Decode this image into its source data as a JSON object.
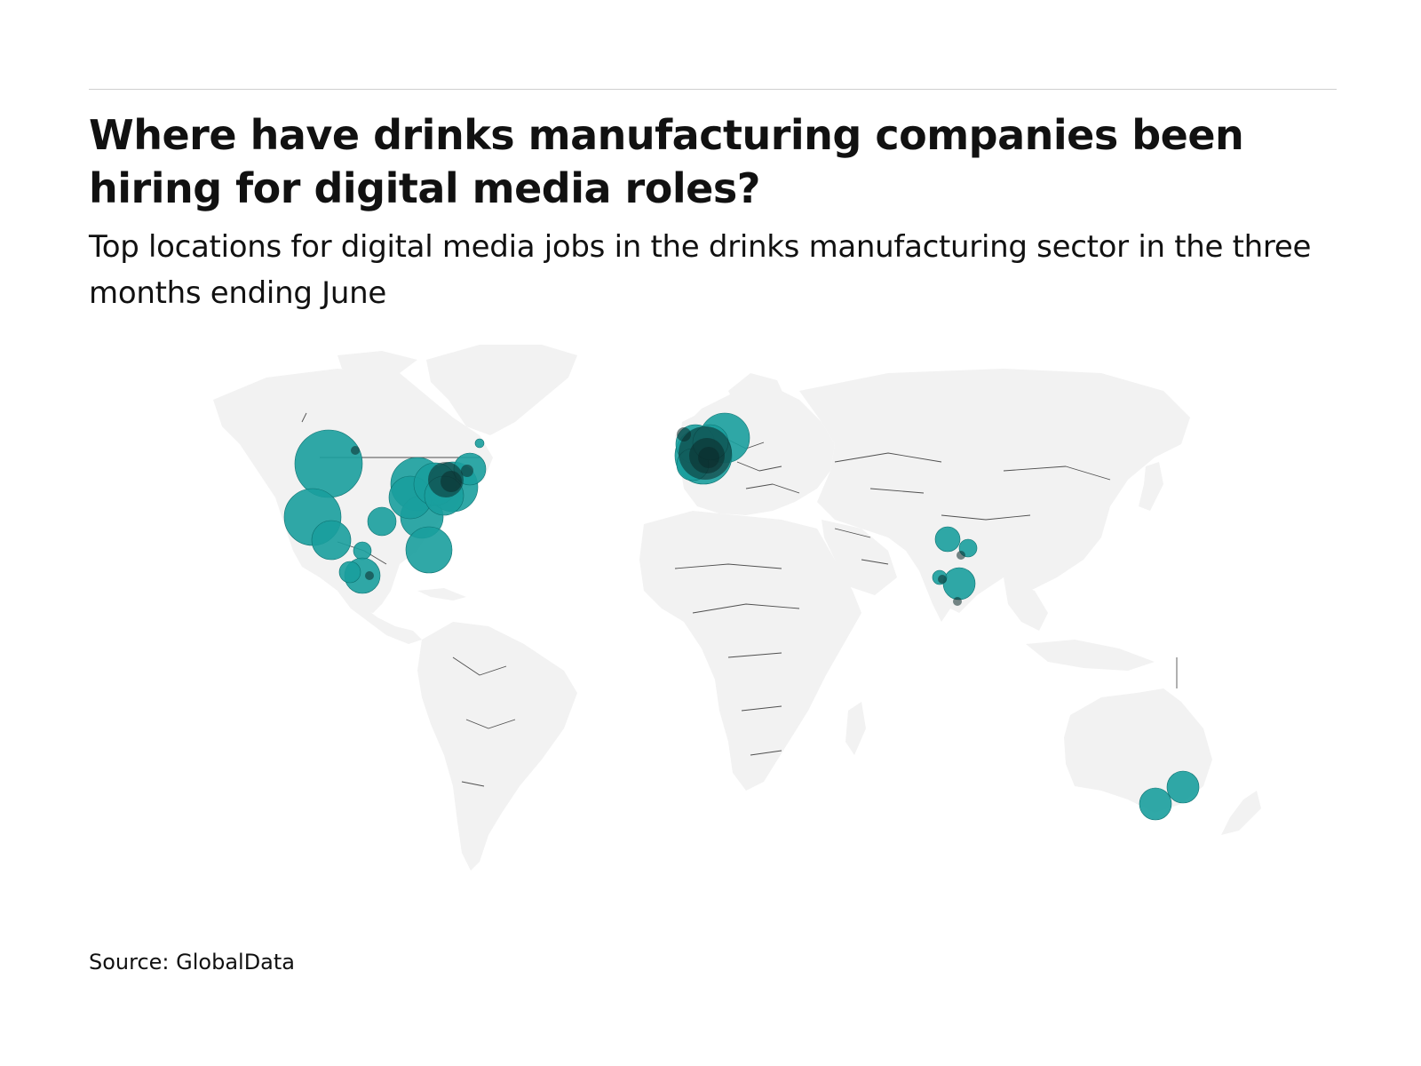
{
  "header": {
    "title": "Where have drinks manufacturing companies been hiring for digital media roles?",
    "subtitle": "Top locations for digital media jobs in the drinks manufacturing sector in the three months ending June"
  },
  "footer": {
    "source": "Source: GlobalData"
  },
  "colors": {
    "bubble": "#1a9e9d",
    "bubble_overlap": "#0b2a2a",
    "land": "#f2f2f2",
    "border": "#333333",
    "rule": "#cfcfcf"
  },
  "chart_data": {
    "type": "bubble-map",
    "title": "Where have drinks manufacturing companies been hiring for digital media roles?",
    "subtitle": "Top locations for digital media jobs in the drinks manufacturing sector in the three months ending June",
    "source": "Source: GlobalData",
    "regions_with_hiring": [
      "North America",
      "Central America",
      "Europe",
      "India",
      "Australia"
    ],
    "approx_bubble_count": 45
  }
}
